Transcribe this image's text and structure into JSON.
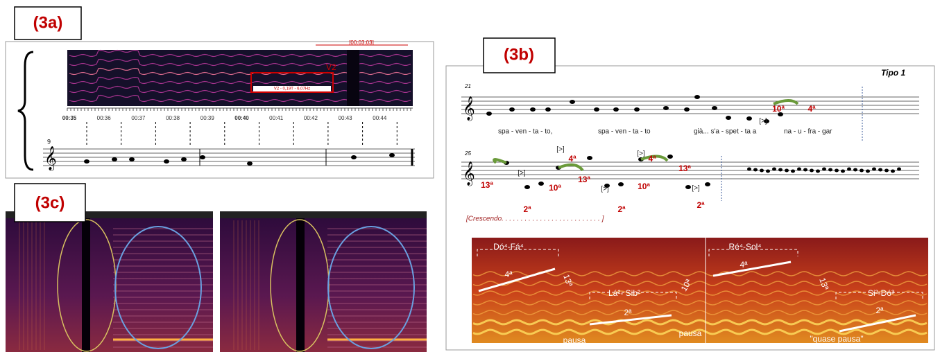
{
  "panel_a": {
    "label": "(3a)",
    "time_ticks": [
      "00:35",
      "00:36",
      "00:37",
      "00:38",
      "00:39",
      "00:40",
      "00:41",
      "00:42",
      "00:43",
      "00:44"
    ],
    "box_title": "V2",
    "box_caption": "V2 - 0,19T - 6,07Hz",
    "duration": "[00:03:03]",
    "measure": "9"
  },
  "panel_b": {
    "label": "(3b)",
    "type_label": "Tipo 1",
    "measures": [
      "21",
      "25"
    ],
    "lyrics": [
      "spa - ven - ta - to,",
      "spa - ven - ta - to",
      "già... s'a - spet - ta a",
      "na - u - fra - gar"
    ],
    "score_marks": [
      "10ª",
      "4ª",
      "[>]",
      "13ª",
      "[>]",
      "2ª",
      "10ª",
      "4ª",
      "[>]",
      "13ª",
      "[>]",
      "2ª",
      "10ª",
      "4ª",
      "[>]",
      "13ª",
      "[>]",
      "2ª"
    ],
    "dynamics": "[Crescendo. . . . . . . . . . . . . . . . . . . . . . . . . . ]",
    "spectrogram_labels": [
      "Dó⁴-Fá⁴",
      "4ª",
      "13ª",
      "Lá²- Sib²",
      "2ª",
      "10ª",
      "pausa",
      "pausa",
      "Ré⁴-Sol⁴",
      "4ª",
      "13ª",
      "Si²-Dó³",
      "2ª",
      "\"quase pausa\""
    ]
  },
  "panel_c": {
    "label": "(3c)"
  }
}
